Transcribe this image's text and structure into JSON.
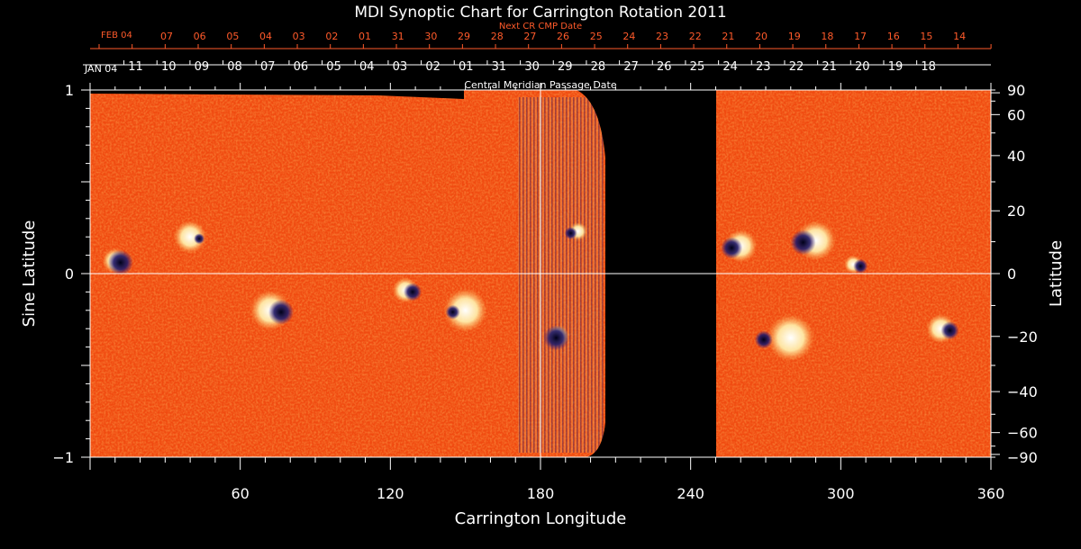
{
  "chart_data": {
    "type": "heatmap",
    "title": "MDI Synoptic Chart for Carrington Rotation 2011",
    "xlabel": "Carrington Longitude",
    "ylabel_left": "Sine Latitude",
    "ylabel_right": "Latitude",
    "xlim": [
      0,
      360
    ],
    "ylim": [
      -1,
      1
    ],
    "x_ticks": [
      "60",
      "120",
      "180",
      "240",
      "300",
      "360"
    ],
    "y_left_ticks": [
      {
        "v": 1,
        "label": "1"
      },
      {
        "v": 0,
        "label": "0"
      },
      {
        "v": -1,
        "label": "−1"
      }
    ],
    "y_right_ticks": [
      {
        "deg": 90,
        "label": "90"
      },
      {
        "deg": 60,
        "label": "60"
      },
      {
        "deg": 40,
        "label": "40"
      },
      {
        "deg": 20,
        "label": "20"
      },
      {
        "deg": 0,
        "label": "0"
      },
      {
        "deg": -20,
        "label": "−20"
      },
      {
        "deg": -40,
        "label": "−40"
      },
      {
        "deg": -60,
        "label": "−60"
      },
      {
        "deg": -90,
        "label": "−90"
      }
    ],
    "cmp_axis_label": "Central Meridian Passage Date",
    "cmp_month_label": "JAN 04",
    "cmp_dates": [
      "11",
      "10",
      "09",
      "08",
      "07",
      "06",
      "05",
      "04",
      "03",
      "02",
      "01",
      "31",
      "30",
      "29",
      "28",
      "27",
      "26",
      "25",
      "24",
      "23",
      "22",
      "21",
      "20",
      "19",
      "18"
    ],
    "next_cmp_axis_label": "Next CR CMP Date",
    "next_month_label": "FEB 04",
    "next_cmp_dates": [
      "07",
      "06",
      "05",
      "04",
      "03",
      "02",
      "01",
      "31",
      "30",
      "29",
      "28",
      "27",
      "26",
      "25",
      "24",
      "23",
      "22",
      "21",
      "20",
      "19",
      "18",
      "17",
      "16",
      "15",
      "14"
    ],
    "data_gap_longitude": [
      205,
      248
    ],
    "central_meridian_longitude": 180,
    "colors": {
      "background_field": "#f04a10",
      "positive": "#fff6c8",
      "negative": "#1a1660",
      "axes": "#ffffff",
      "secondary_axis": "#ff5a2a"
    }
  }
}
